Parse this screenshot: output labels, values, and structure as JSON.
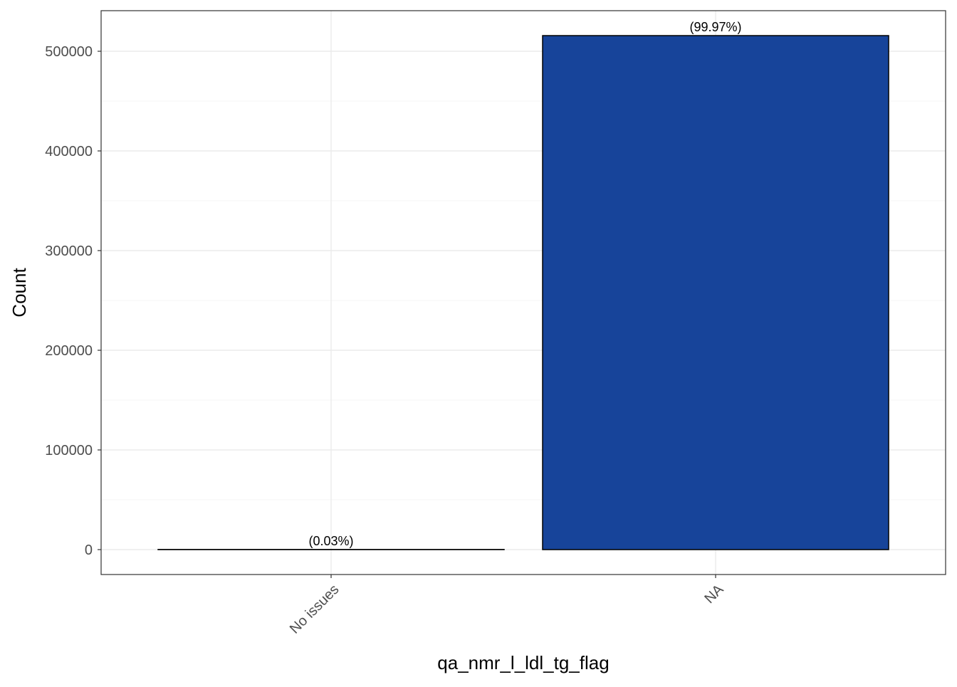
{
  "chart_data": {
    "type": "bar",
    "title": "",
    "xlabel": "qa_nmr_l_ldl_tg_flag",
    "ylabel": "Count",
    "categories": [
      "No issues",
      "NA"
    ],
    "values": [
      155,
      515700
    ],
    "data_labels": [
      "(0.03%)",
      "(99.97%)"
    ],
    "ylim": [
      0,
      565000
    ],
    "yticks": [
      0,
      100000,
      200000,
      300000,
      400000,
      500000
    ],
    "ytick_labels": [
      "0",
      "100000",
      "200000",
      "300000",
      "400000",
      "500000"
    ],
    "grid": true,
    "bar_color": "#17449A",
    "bar_outline": "#000000"
  }
}
